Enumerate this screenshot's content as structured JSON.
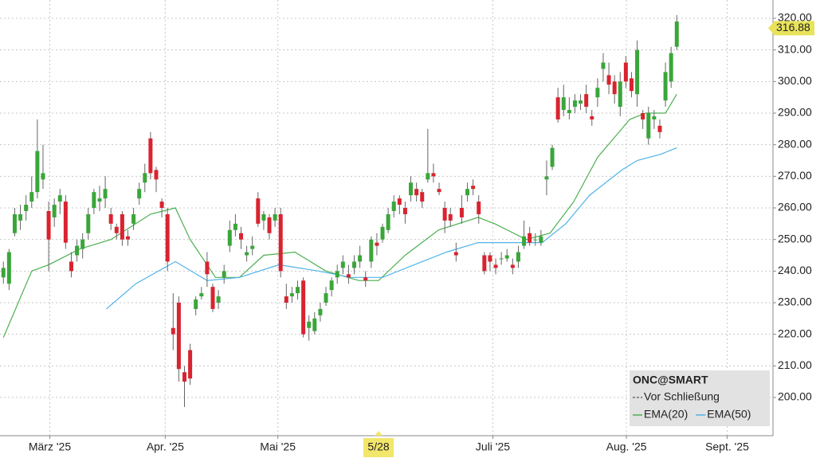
{
  "chart_data": {
    "type": "candlestick",
    "xlim": [
      -0.6,
      136
    ],
    "xticks": [
      {
        "value": 8.2,
        "label": "März '25"
      },
      {
        "value": 28.6,
        "label": "Apr. '25"
      },
      {
        "value": 48.5,
        "label": "Mai '25"
      },
      {
        "value": 86.5,
        "label": "Juli '25"
      },
      {
        "value": 110.1,
        "label": "Aug. '25"
      },
      {
        "value": 127.9,
        "label": "Sept. '25"
      }
    ],
    "crosshair_x": {
      "value": 66.3,
      "label": "5/28"
    },
    "ylim": [
      187.9,
      325.8
    ],
    "yticks": [
      {
        "value": 200,
        "label": "200.00"
      },
      {
        "value": 210,
        "label": "210.00"
      },
      {
        "value": 220,
        "label": "220.00"
      },
      {
        "value": 230,
        "label": "230.00"
      },
      {
        "value": 240,
        "label": "240.00"
      },
      {
        "value": 250,
        "label": "250.00"
      },
      {
        "value": 260,
        "label": "260.00"
      },
      {
        "value": 270,
        "label": "270.00"
      },
      {
        "value": 280,
        "label": "280.00"
      },
      {
        "value": 290,
        "label": "290.00"
      },
      {
        "value": 300,
        "label": "300.00"
      },
      {
        "value": 310,
        "label": "310.00"
      },
      {
        "value": 320,
        "label": "320.00"
      }
    ],
    "grid": true,
    "last_price": {
      "value": 316.88,
      "label": "316.88"
    },
    "legend": {
      "title": "ONC@SMART",
      "items": [
        "Vor Schließung"
      ]
    },
    "up_color": "#3aa63a",
    "down_color": "#d9232f",
    "open": [
      238,
      236,
      252,
      256,
      259,
      262,
      265,
      269,
      259,
      257,
      262,
      262,
      243,
      245,
      247,
      252,
      260,
      262,
      263,
      258,
      254,
      258,
      251,
      255,
      263,
      268,
      282,
      272,
      262,
      258,
      222,
      230,
      208,
      215,
      228,
      232,
      243,
      235,
      230,
      238,
      248,
      253,
      252,
      245,
      247,
      263,
      256,
      257,
      256,
      258,
      232,
      232,
      233,
      237,
      222,
      221,
      226,
      230,
      234,
      238,
      241,
      239,
      241,
      243,
      238,
      243,
      249,
      250,
      253,
      259,
      263,
      260,
      264,
      266,
      265,
      269,
      271,
      266,
      260,
      258,
      246,
      260,
      264,
      267,
      262,
      245,
      245,
      242,
      244,
      244,
      242,
      243,
      248,
      252,
      250,
      249,
      269,
      273,
      295,
      291,
      290,
      292,
      293,
      296,
      289,
      295,
      304,
      302,
      300,
      292,
      306,
      301,
      296,
      290,
      282,
      288,
      286,
      294,
      300,
      311
    ],
    "high": [
      243,
      247,
      260,
      261,
      264,
      270,
      288,
      280,
      262,
      263,
      266,
      264,
      246,
      250,
      252,
      260,
      266,
      267,
      270,
      260,
      255,
      259,
      253,
      260,
      268,
      274,
      284,
      273,
      263,
      260,
      233,
      232,
      210,
      217,
      232,
      235,
      246,
      236,
      234,
      242,
      256,
      258,
      254,
      248,
      251,
      265,
      259,
      258,
      260,
      260,
      236,
      235,
      237,
      238,
      226,
      227,
      230,
      235,
      238,
      242,
      245,
      242,
      245,
      248,
      240,
      251,
      252,
      255,
      260,
      264,
      264,
      262,
      270,
      268,
      266,
      285,
      274,
      268,
      262,
      260,
      249,
      264,
      268,
      269,
      264,
      246,
      246,
      244,
      246,
      247,
      244,
      248,
      256,
      254,
      252,
      253,
      275,
      280,
      298,
      299,
      295,
      296,
      296,
      299,
      291,
      301,
      309,
      306,
      302,
      303,
      308,
      303,
      313,
      291,
      292,
      291,
      288,
      306,
      311,
      321
    ],
    "low": [
      236,
      234,
      251,
      253,
      256,
      260,
      263,
      266,
      240,
      254,
      258,
      247,
      238,
      243,
      244,
      250,
      258,
      259,
      260,
      253,
      250,
      248,
      248,
      253,
      261,
      265,
      269,
      265,
      257,
      240,
      215,
      205,
      197,
      204,
      226,
      231,
      235,
      227,
      228,
      236,
      246,
      251,
      247,
      243,
      245,
      254,
      253,
      250,
      254,
      238,
      228,
      230,
      231,
      219,
      218,
      220,
      224,
      229,
      232,
      236,
      239,
      236,
      239,
      241,
      235,
      241,
      245,
      249,
      252,
      257,
      258,
      255,
      262,
      262,
      260,
      268,
      268,
      264,
      252,
      254,
      243,
      255,
      262,
      264,
      255,
      239,
      240,
      239,
      242,
      243,
      239,
      241,
      247,
      248,
      248,
      248,
      264,
      272,
      287,
      289,
      288,
      290,
      291,
      290,
      286,
      292,
      300,
      296,
      293,
      289,
      298,
      295,
      292,
      285,
      280,
      285,
      282,
      292,
      298,
      310
    ],
    "close": [
      241,
      246,
      258,
      258,
      261,
      265,
      278,
      271,
      250,
      261,
      264,
      249,
      240,
      248,
      250,
      258,
      265,
      263,
      266,
      255,
      252,
      250,
      250,
      258,
      266,
      271,
      271,
      269,
      260,
      243,
      220,
      209,
      205,
      206,
      231,
      233,
      239,
      228,
      232,
      240,
      253,
      255,
      250,
      246,
      248,
      255,
      258,
      252,
      258,
      240,
      230,
      233,
      235,
      220,
      224,
      225,
      228,
      233,
      237,
      240,
      243,
      238,
      243,
      245,
      237,
      250,
      248,
      254,
      258,
      262,
      261,
      258,
      268,
      264,
      262,
      271,
      270,
      265,
      256,
      256,
      245,
      257,
      266,
      266,
      258,
      240,
      243,
      241,
      244,
      245,
      241,
      246,
      251,
      249,
      250,
      251,
      270,
      279,
      288,
      295,
      291,
      294,
      294,
      292,
      288,
      298,
      306,
      299,
      296,
      300,
      300,
      297,
      310,
      288,
      290,
      289,
      284,
      303,
      309,
      319
    ],
    "series": [
      {
        "name": "EMA(20)",
        "color": "#4caf50",
        "x": [
          0,
          5,
          8,
          13.5,
          19,
          26,
          30.4,
          33,
          37.5,
          41.7,
          46,
          51.5,
          57,
          62.8,
          66.3,
          71,
          76.9,
          83.9,
          86.8,
          92.4,
          96.6,
          100.8,
          105,
          110.7,
          113.5,
          117,
          119
        ],
        "values": [
          219,
          240,
          242,
          247,
          250,
          258,
          260,
          250,
          238,
          238,
          245,
          246,
          240,
          237,
          237,
          245,
          253,
          257,
          255,
          250,
          252,
          262,
          276,
          288,
          290,
          290,
          296
        ]
      },
      {
        "name": "EMA(50)",
        "color": "#4fb3e8",
        "x": [
          18.2,
          23.4,
          30.4,
          36,
          41.7,
          48.7,
          55.7,
          61.4,
          67,
          72.6,
          78.3,
          83.9,
          89.5,
          95.2,
          99.4,
          103.6,
          109.3,
          112,
          116.2,
          119
        ],
        "values": [
          228,
          236,
          243,
          237,
          238,
          242,
          240,
          238,
          238,
          242,
          246,
          249,
          249,
          249,
          255,
          264,
          272,
          275,
          277,
          279
        ]
      }
    ]
  }
}
